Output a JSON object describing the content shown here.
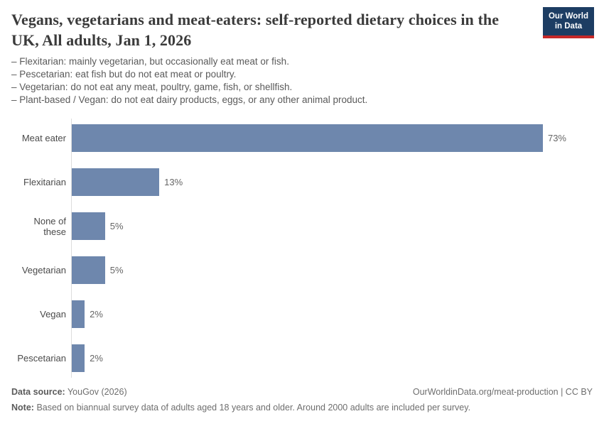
{
  "header": {
    "title": "Vegans, vegetarians and meat-eaters: self-reported dietary choices in the UK, All adults, Jan 1, 2026",
    "subtitle_lines": [
      "– Flexitarian: mainly vegetarian, but occasionally eat meat or fish.",
      "– Pescetarian: eat fish but do not eat meat or poultry.",
      "– Vegetarian: do not eat any meat, poultry, game, fish, or shellfish.",
      "– Plant-based / Vegan: do not eat dairy products, eggs, or any other animal product."
    ],
    "logo": {
      "line1": "Our World",
      "line2": "in Data"
    }
  },
  "chart_data": {
    "type": "bar",
    "orientation": "horizontal",
    "title": "Vegans, vegetarians and meat-eaters: self-reported dietary choices in the UK, All adults, Jan 1, 2026",
    "categories": [
      "Meat eater",
      "Flexitarian",
      "None of these",
      "Vegetarian",
      "Vegan",
      "Pescetarian"
    ],
    "values": [
      73,
      13,
      5,
      5,
      2,
      2
    ],
    "value_labels": [
      "73%",
      "13%",
      "5%",
      "5%",
      "2%",
      "2%"
    ],
    "unit": "%",
    "xlim": [
      0,
      73
    ],
    "grid": false,
    "legend": "none",
    "bar_color": "#6e87ad"
  },
  "footer": {
    "source_label": "Data source:",
    "source_value": "YouGov (2026)",
    "attribution": "OurWorldinData.org/meat-production | CC BY",
    "note_label": "Note:",
    "note_value": "Based on biannual survey data of adults aged 18 years and older. Around 2000 adults are included per survey."
  },
  "colors": {
    "bar": "#6e87ad",
    "logo_bg": "#1d3d63",
    "logo_accent": "#c62828",
    "axis_line": "#dcdcdc",
    "title_text": "#3b3b3b",
    "body_text": "#5a5a5a"
  }
}
